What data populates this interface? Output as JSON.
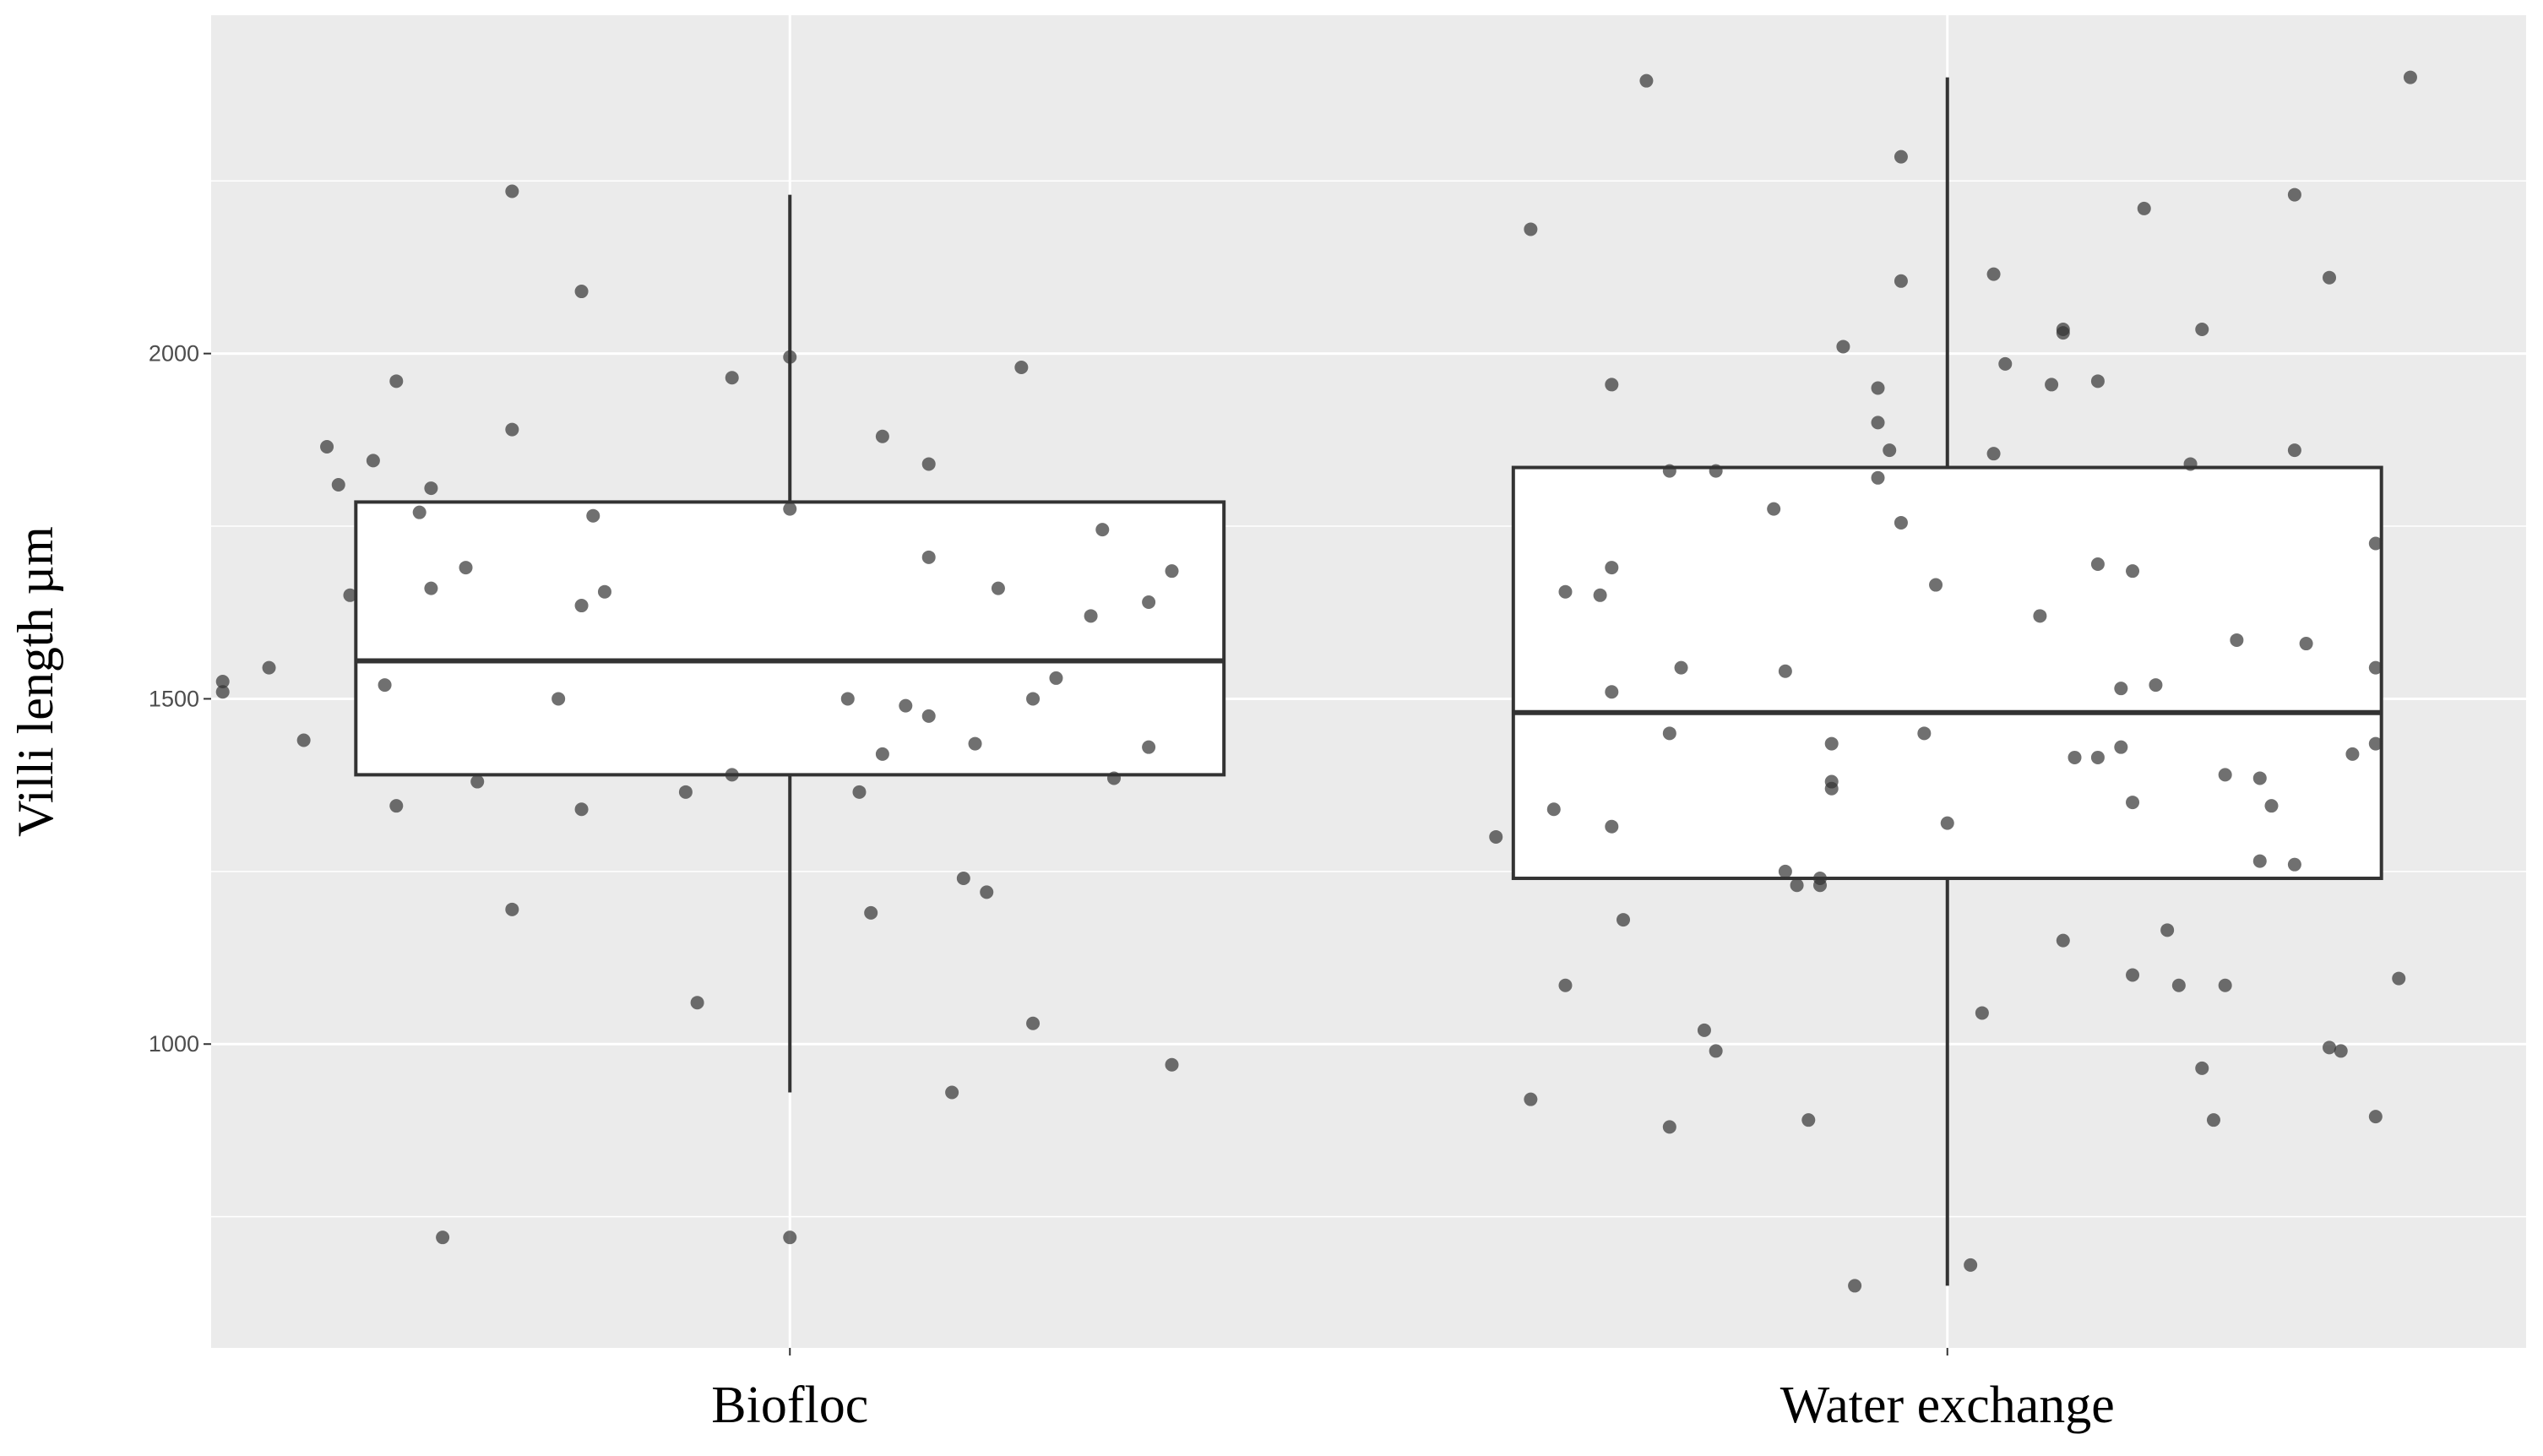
{
  "chart_data": {
    "type": "box",
    "title": "",
    "xlabel": "",
    "ylabel": "Villi length µm",
    "ylim": [
      560,
      2490
    ],
    "y_ticks": [
      1000,
      1500,
      2000
    ],
    "y_tick_labels": [
      "1000",
      "1500",
      "2000"
    ],
    "grid": true,
    "legend": "none",
    "colors": {
      "panel_bg": "#ebebeb",
      "grid": "#ffffff",
      "box_fill": "#ffffff",
      "box_line": "#333333",
      "points": "#333333"
    },
    "categories": [
      "Biofloc",
      "Water exchange"
    ],
    "boxes": [
      {
        "category": "Biofloc",
        "whisker_low": 930,
        "q1": 1390,
        "median": 1555,
        "q3": 1785,
        "whisker_high": 2230,
        "points": [
          [
            -0.24,
            2235
          ],
          [
            -0.18,
            2090
          ],
          [
            -0.34,
            1960
          ],
          [
            -0.24,
            1890
          ],
          [
            -0.05,
            1965
          ],
          [
            0.0,
            1995
          ],
          [
            0.2,
            1980
          ],
          [
            -0.4,
            1865
          ],
          [
            -0.36,
            1845
          ],
          [
            -0.39,
            1810
          ],
          [
            -0.31,
            1805
          ],
          [
            0.08,
            1880
          ],
          [
            0.12,
            1840
          ],
          [
            -0.32,
            1770
          ],
          [
            -0.17,
            1765
          ],
          [
            0.0,
            1775
          ],
          [
            0.27,
            1745
          ],
          [
            -0.28,
            1690
          ],
          [
            -0.38,
            1650
          ],
          [
            -0.31,
            1660
          ],
          [
            -0.16,
            1655
          ],
          [
            -0.18,
            1635
          ],
          [
            0.12,
            1705
          ],
          [
            0.18,
            1660
          ],
          [
            0.33,
            1685
          ],
          [
            0.31,
            1640
          ],
          [
            0.26,
            1620
          ],
          [
            -0.45,
            1545
          ],
          [
            -0.49,
            1525
          ],
          [
            -0.49,
            1510
          ],
          [
            -0.35,
            1520
          ],
          [
            -0.2,
            1500
          ],
          [
            0.05,
            1500
          ],
          [
            0.1,
            1490
          ],
          [
            0.12,
            1475
          ],
          [
            0.23,
            1530
          ],
          [
            0.21,
            1500
          ],
          [
            -0.42,
            1440
          ],
          [
            0.16,
            1435
          ],
          [
            0.31,
            1430
          ],
          [
            0.08,
            1420
          ],
          [
            -0.05,
            1390
          ],
          [
            0.28,
            1385
          ],
          [
            -0.27,
            1380
          ],
          [
            -0.09,
            1365
          ],
          [
            0.06,
            1365
          ],
          [
            -0.18,
            1340
          ],
          [
            -0.34,
            1345
          ],
          [
            0.15,
            1240
          ],
          [
            0.17,
            1220
          ],
          [
            -0.24,
            1195
          ],
          [
            0.07,
            1190
          ],
          [
            -0.08,
            1060
          ],
          [
            0.21,
            1030
          ],
          [
            0.33,
            970
          ],
          [
            0.14,
            930
          ],
          [
            -0.3,
            720
          ],
          [
            0.0,
            720
          ]
        ]
      },
      {
        "category": "Water exchange",
        "whisker_low": 650,
        "q1": 1240,
        "median": 1480,
        "q3": 1835,
        "whisker_high": 2400,
        "points": [
          [
            -0.26,
            2395
          ],
          [
            0.4,
            2400
          ],
          [
            -0.04,
            2285
          ],
          [
            0.3,
            2230
          ],
          [
            0.17,
            2210
          ],
          [
            -0.36,
            2180
          ],
          [
            0.33,
            2110
          ],
          [
            -0.04,
            2105
          ],
          [
            0.04,
            2115
          ],
          [
            0.1,
            2035
          ],
          [
            0.1,
            2030
          ],
          [
            0.22,
            2035
          ],
          [
            -0.09,
            2010
          ],
          [
            0.05,
            1985
          ],
          [
            -0.29,
            1955
          ],
          [
            -0.06,
            1950
          ],
          [
            0.09,
            1955
          ],
          [
            0.13,
            1960
          ],
          [
            -0.06,
            1900
          ],
          [
            -0.05,
            1860
          ],
          [
            0.04,
            1855
          ],
          [
            0.3,
            1860
          ],
          [
            0.21,
            1840
          ],
          [
            -0.24,
            1830
          ],
          [
            -0.2,
            1830
          ],
          [
            -0.06,
            1820
          ],
          [
            -0.15,
            1775
          ],
          [
            -0.04,
            1755
          ],
          [
            0.37,
            1725
          ],
          [
            0.13,
            1695
          ],
          [
            0.16,
            1685
          ],
          [
            -0.29,
            1690
          ],
          [
            -0.33,
            1655
          ],
          [
            -0.3,
            1650
          ],
          [
            -0.01,
            1665
          ],
          [
            0.08,
            1620
          ],
          [
            0.25,
            1585
          ],
          [
            0.31,
            1580
          ],
          [
            0.37,
            1545
          ],
          [
            -0.23,
            1545
          ],
          [
            -0.14,
            1540
          ],
          [
            0.15,
            1515
          ],
          [
            0.18,
            1520
          ],
          [
            -0.29,
            1510
          ],
          [
            0.37,
            1435
          ],
          [
            0.35,
            1420
          ],
          [
            -0.24,
            1450
          ],
          [
            -0.1,
            1435
          ],
          [
            -0.02,
            1450
          ],
          [
            0.15,
            1430
          ],
          [
            0.11,
            1415
          ],
          [
            0.13,
            1415
          ],
          [
            0.24,
            1390
          ],
          [
            0.27,
            1385
          ],
          [
            -0.1,
            1380
          ],
          [
            -0.1,
            1370
          ],
          [
            0.16,
            1350
          ],
          [
            0.28,
            1345
          ],
          [
            -0.34,
            1340
          ],
          [
            -0.29,
            1315
          ],
          [
            -0.39,
            1300
          ],
          [
            0.0,
            1320
          ],
          [
            -0.14,
            1250
          ],
          [
            -0.11,
            1240
          ],
          [
            -0.11,
            1230
          ],
          [
            -0.13,
            1230
          ],
          [
            0.27,
            1265
          ],
          [
            0.3,
            1260
          ],
          [
            -0.28,
            1180
          ],
          [
            0.1,
            1150
          ],
          [
            0.19,
            1165
          ],
          [
            0.16,
            1100
          ],
          [
            0.2,
            1085
          ],
          [
            0.24,
            1085
          ],
          [
            0.39,
            1095
          ],
          [
            -0.33,
            1085
          ],
          [
            0.03,
            1045
          ],
          [
            -0.21,
            1020
          ],
          [
            -0.2,
            990
          ],
          [
            0.33,
            995
          ],
          [
            0.34,
            990
          ],
          [
            0.22,
            965
          ],
          [
            -0.36,
            920
          ],
          [
            -0.24,
            880
          ],
          [
            -0.12,
            890
          ],
          [
            0.23,
            890
          ],
          [
            0.37,
            895
          ],
          [
            0.02,
            680
          ],
          [
            -0.08,
            650
          ]
        ]
      }
    ]
  }
}
